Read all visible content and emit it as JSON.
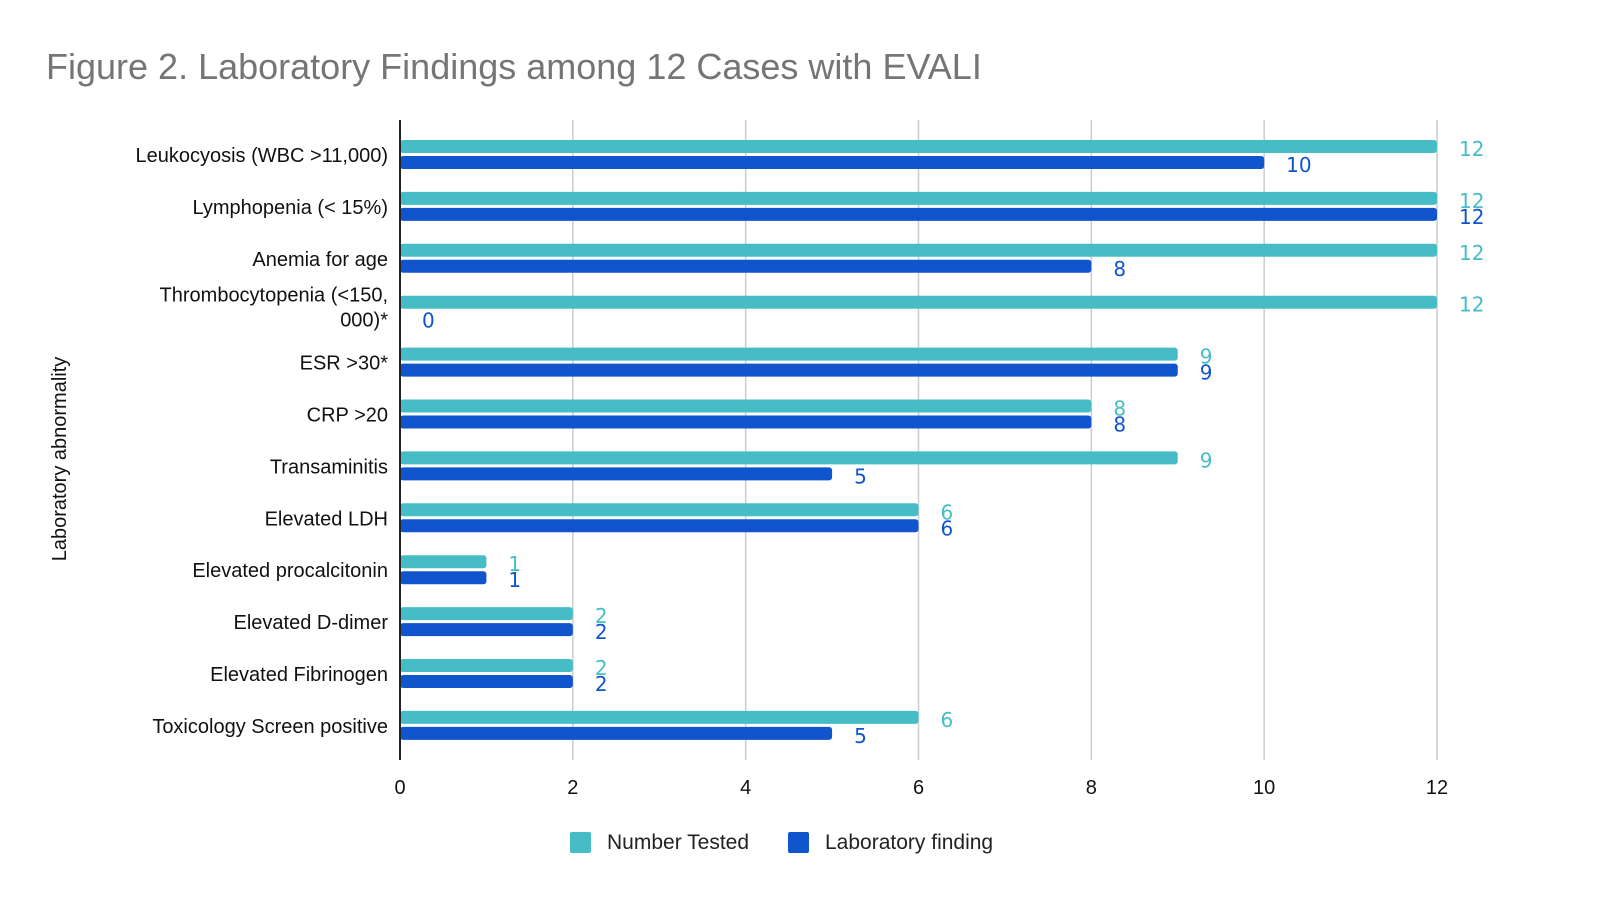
{
  "chart_data": {
    "type": "bar",
    "orientation": "horizontal",
    "title": "Figure 2. Laboratory Findings among 12 Cases with EVALI",
    "xlabel": "",
    "ylabel": "Laboratory abnormality",
    "xlim": [
      0,
      12
    ],
    "xticks": [
      0,
      2,
      4,
      6,
      8,
      10,
      12
    ],
    "grid": true,
    "legend_position": "bottom",
    "categories": [
      [
        "Leukocyosis (WBC >11,000)"
      ],
      [
        "Lymphopenia (< 15%)"
      ],
      [
        "Anemia for age"
      ],
      [
        "Thrombocytopenia (<150,",
        "000)*"
      ],
      [
        "ESR >30*"
      ],
      [
        "CRP >20"
      ],
      [
        "Transaminitis"
      ],
      [
        "Elevated LDH"
      ],
      [
        "Elevated procalcitonin"
      ],
      [
        "Elevated D-dimer"
      ],
      [
        "Elevated Fibrinogen"
      ],
      [
        "Toxicology Screen positive"
      ]
    ],
    "series": [
      {
        "name": "Number Tested",
        "color": "#46bdc6",
        "values": [
          12,
          12,
          12,
          12,
          9,
          8,
          9,
          6,
          1,
          2,
          2,
          6
        ]
      },
      {
        "name": "Laboratory finding",
        "color": "#1155cc",
        "values": [
          10,
          12,
          8,
          0,
          9,
          8,
          5,
          6,
          1,
          2,
          2,
          5
        ]
      }
    ]
  }
}
